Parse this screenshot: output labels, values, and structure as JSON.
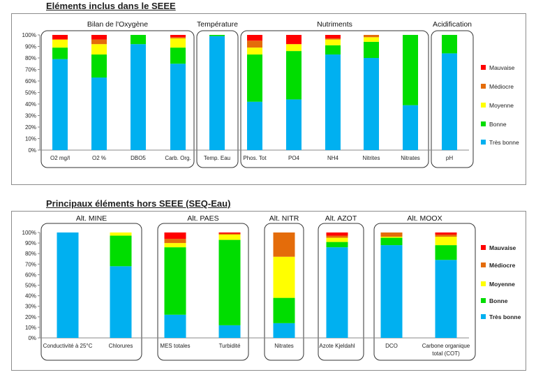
{
  "sections": [
    {
      "title": "Eléments inclus dans le SEEE"
    },
    {
      "title": "Principaux éléments hors SEEE (SEQ-Eau)"
    }
  ],
  "colors": {
    "Mauvaise": "#ff0000",
    "Médiocre": "#e46c0a",
    "Moyenne": "#ffff00",
    "Bonne": "#00dd00",
    "Très bonne": "#00b0f0"
  },
  "chart_data": [
    {
      "type": "bar",
      "stacked": true,
      "title": "Eléments inclus dans le SEEE",
      "ylim": [
        0,
        100
      ],
      "yticks": [
        "0%",
        "10%",
        "20%",
        "30%",
        "40%",
        "50%",
        "60%",
        "70%",
        "80%",
        "90%",
        "100%"
      ],
      "legend": [
        "Mauvaise",
        "Médiocre",
        "Moyenne",
        "Bonne",
        "Très bonne"
      ],
      "legend_position": "right",
      "groups": [
        {
          "label": "Bilan de l'Oxygène",
          "categories": [
            "O2 mg/l",
            "O2 %",
            "DBO5",
            "Carb. Org."
          ]
        },
        {
          "label": "Température",
          "categories": [
            "Temp. Eau"
          ]
        },
        {
          "label": "Nutriments",
          "categories": [
            "Phos. Tot",
            "PO4",
            "NH4",
            "Nitrites",
            "Nitrates"
          ]
        },
        {
          "label": "Acidification",
          "categories": [
            "pH"
          ]
        }
      ],
      "categories": [
        "O2 mg/l",
        "O2 %",
        "DBO5",
        "Carb. Org.",
        "Temp. Eau",
        "Phos. Tot",
        "PO4",
        "NH4",
        "Nitrites",
        "Nitrates",
        "pH"
      ],
      "series": [
        {
          "name": "Très bonne",
          "values": [
            79,
            63,
            92,
            75,
            99,
            42,
            44,
            83,
            80,
            39,
            84
          ]
        },
        {
          "name": "Bonne",
          "values": [
            10,
            20,
            8,
            14,
            1,
            41,
            42,
            8,
            14,
            61,
            16
          ]
        },
        {
          "name": "Moyenne",
          "values": [
            7,
            9,
            0,
            8,
            0,
            6,
            6,
            5,
            4,
            0,
            0
          ]
        },
        {
          "name": "Médiocre",
          "values": [
            0,
            4,
            0,
            1,
            0,
            6,
            0,
            1,
            2,
            0,
            0
          ]
        },
        {
          "name": "Mauvaise",
          "values": [
            4,
            4,
            0,
            2,
            0,
            5,
            8,
            3,
            0,
            0,
            0
          ]
        }
      ]
    },
    {
      "type": "bar",
      "stacked": true,
      "title": "Principaux éléments hors SEEE (SEQ-Eau)",
      "ylim": [
        0,
        100
      ],
      "yticks": [
        "0%",
        "10%",
        "20%",
        "30%",
        "40%",
        "50%",
        "60%",
        "70%",
        "80%",
        "90%",
        "100%"
      ],
      "legend": [
        "Mauvaise",
        "Médiocre",
        "Moyenne",
        "Bonne",
        "Très bonne"
      ],
      "legend_position": "right",
      "groups": [
        {
          "label": "Alt. MINE",
          "categories": [
            "Conductivité à 25°C",
            "Chlorures"
          ]
        },
        {
          "label": "Alt. PAES",
          "categories": [
            "MES totales",
            "Turbidité"
          ]
        },
        {
          "label": "Alt. NITR",
          "categories": [
            "Nitrates"
          ]
        },
        {
          "label": "Alt. AZOT",
          "categories": [
            "Azote Kjeldahl"
          ]
        },
        {
          "label": "Alt. MOOX",
          "categories": [
            "DCO",
            "Carbone organique total (COT)"
          ]
        }
      ],
      "categories": [
        "Conductivité à 25°C",
        "Chlorures",
        "MES totales",
        "Turbidité",
        "Nitrates",
        "Azote Kjeldahl",
        "DCO",
        "Carbone organique total (COT)"
      ],
      "category_lines": [
        [
          "Conductivité à 25°C"
        ],
        [
          "Chlorures"
        ],
        [
          "MES totales"
        ],
        [
          "Turbidité"
        ],
        [
          "Nitrates"
        ],
        [
          "Azote Kjeldahl"
        ],
        [
          "DCO"
        ],
        [
          "Carbone organique",
          "total (COT)"
        ]
      ],
      "series": [
        {
          "name": "Très bonne",
          "values": [
            100,
            68,
            22,
            12,
            14,
            86,
            88,
            74
          ]
        },
        {
          "name": "Bonne",
          "values": [
            0,
            29,
            64,
            81,
            24,
            5,
            7,
            14
          ]
        },
        {
          "name": "Moyenne",
          "values": [
            0,
            3,
            4,
            5,
            39,
            4,
            1,
            8
          ]
        },
        {
          "name": "Médiocre",
          "values": [
            0,
            0,
            4,
            1,
            23,
            2,
            4,
            2
          ]
        },
        {
          "name": "Mauvaise",
          "values": [
            0,
            0,
            6,
            1,
            0,
            3,
            0,
            2
          ]
        }
      ]
    }
  ]
}
